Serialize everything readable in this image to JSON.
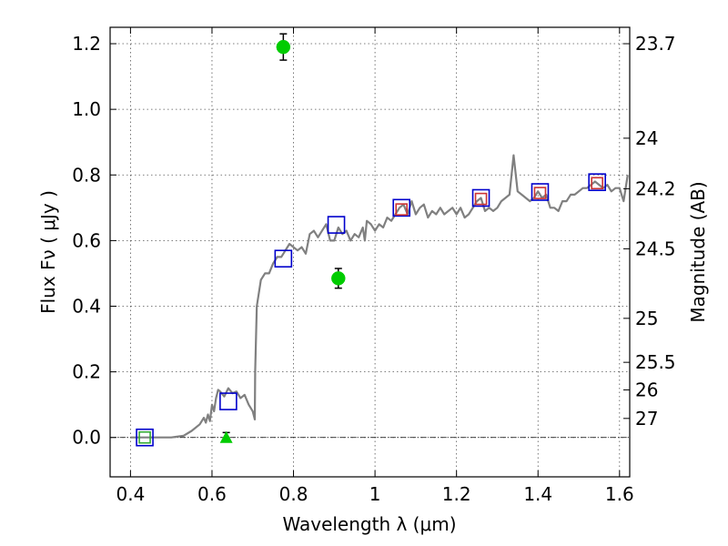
{
  "chart_data": {
    "type": "scatter",
    "xlabel": "Wavelength  λ (μm)",
    "ylabel": "Flux  Fν  ( μJy )",
    "y2label": "Magnitude (AB)",
    "xlim": [
      0.35,
      1.625
    ],
    "ylim": [
      -0.12,
      1.25
    ],
    "grid": true,
    "x_ticks": [
      {
        "v": 0.4,
        "label": "0.4"
      },
      {
        "v": 0.6,
        "label": "0.6"
      },
      {
        "v": 0.8,
        "label": "0.8"
      },
      {
        "v": 1.0,
        "label": "1"
      },
      {
        "v": 1.2,
        "label": "1.2"
      },
      {
        "v": 1.4,
        "label": "1.4"
      },
      {
        "v": 1.6,
        "label": "1.6"
      }
    ],
    "y_ticks": [
      {
        "v": 0.0,
        "label": "0.0"
      },
      {
        "v": 0.2,
        "label": "0.2"
      },
      {
        "v": 0.4,
        "label": "0.4"
      },
      {
        "v": 0.6,
        "label": "0.6"
      },
      {
        "v": 0.8,
        "label": "0.8"
      },
      {
        "v": 1.0,
        "label": "1.0"
      },
      {
        "v": 1.2,
        "label": "1.2"
      }
    ],
    "y2_ticks": [
      {
        "flux": 1.2,
        "label": "23.7"
      },
      {
        "flux": 0.912,
        "label": "24"
      },
      {
        "flux": 0.758,
        "label": "24.2"
      },
      {
        "flux": 0.575,
        "label": "24.5"
      },
      {
        "flux": 0.363,
        "label": "25"
      },
      {
        "flux": 0.229,
        "label": "25.5"
      },
      {
        "flux": 0.145,
        "label": "26"
      },
      {
        "flux": 0.058,
        "label": "27"
      }
    ],
    "series": [
      {
        "kind": "model-spectrum",
        "color": "#808080",
        "points": [
          [
            0.4,
            0.0
          ],
          [
            0.44,
            0.0
          ],
          [
            0.5,
            0.0
          ],
          [
            0.53,
            0.005
          ],
          [
            0.55,
            0.02
          ],
          [
            0.57,
            0.04
          ],
          [
            0.58,
            0.06
          ],
          [
            0.585,
            0.045
          ],
          [
            0.59,
            0.07
          ],
          [
            0.595,
            0.05
          ],
          [
            0.6,
            0.1
          ],
          [
            0.605,
            0.08
          ],
          [
            0.61,
            0.12
          ],
          [
            0.615,
            0.145
          ],
          [
            0.62,
            0.14
          ],
          [
            0.63,
            0.125
          ],
          [
            0.64,
            0.15
          ],
          [
            0.65,
            0.135
          ],
          [
            0.66,
            0.14
          ],
          [
            0.67,
            0.12
          ],
          [
            0.68,
            0.13
          ],
          [
            0.69,
            0.1
          ],
          [
            0.7,
            0.08
          ],
          [
            0.705,
            0.055
          ],
          [
            0.706,
            0.2
          ],
          [
            0.71,
            0.4
          ],
          [
            0.72,
            0.48
          ],
          [
            0.73,
            0.5
          ],
          [
            0.74,
            0.5
          ],
          [
            0.75,
            0.53
          ],
          [
            0.76,
            0.55
          ],
          [
            0.77,
            0.55
          ],
          [
            0.78,
            0.57
          ],
          [
            0.79,
            0.59
          ],
          [
            0.8,
            0.58
          ],
          [
            0.81,
            0.57
          ],
          [
            0.82,
            0.58
          ],
          [
            0.83,
            0.56
          ],
          [
            0.84,
            0.62
          ],
          [
            0.85,
            0.63
          ],
          [
            0.86,
            0.61
          ],
          [
            0.87,
            0.63
          ],
          [
            0.88,
            0.65
          ],
          [
            0.89,
            0.6
          ],
          [
            0.9,
            0.6
          ],
          [
            0.91,
            0.64
          ],
          [
            0.92,
            0.62
          ],
          [
            0.93,
            0.63
          ],
          [
            0.94,
            0.6
          ],
          [
            0.95,
            0.62
          ],
          [
            0.96,
            0.61
          ],
          [
            0.97,
            0.64
          ],
          [
            0.975,
            0.6
          ],
          [
            0.98,
            0.66
          ],
          [
            0.99,
            0.65
          ],
          [
            1.0,
            0.63
          ],
          [
            1.01,
            0.65
          ],
          [
            1.02,
            0.64
          ],
          [
            1.03,
            0.67
          ],
          [
            1.04,
            0.66
          ],
          [
            1.05,
            0.68
          ],
          [
            1.06,
            0.7
          ],
          [
            1.07,
            0.71
          ],
          [
            1.08,
            0.68
          ],
          [
            1.09,
            0.72
          ],
          [
            1.1,
            0.68
          ],
          [
            1.11,
            0.7
          ],
          [
            1.12,
            0.71
          ],
          [
            1.13,
            0.67
          ],
          [
            1.14,
            0.69
          ],
          [
            1.15,
            0.68
          ],
          [
            1.16,
            0.7
          ],
          [
            1.17,
            0.68
          ],
          [
            1.18,
            0.69
          ],
          [
            1.19,
            0.7
          ],
          [
            1.2,
            0.68
          ],
          [
            1.21,
            0.7
          ],
          [
            1.22,
            0.67
          ],
          [
            1.23,
            0.68
          ],
          [
            1.24,
            0.7
          ],
          [
            1.25,
            0.72
          ],
          [
            1.26,
            0.73
          ],
          [
            1.27,
            0.69
          ],
          [
            1.28,
            0.7
          ],
          [
            1.29,
            0.69
          ],
          [
            1.3,
            0.7
          ],
          [
            1.31,
            0.72
          ],
          [
            1.32,
            0.73
          ],
          [
            1.33,
            0.74
          ],
          [
            1.34,
            0.86
          ],
          [
            1.35,
            0.75
          ],
          [
            1.36,
            0.74
          ],
          [
            1.37,
            0.73
          ],
          [
            1.38,
            0.72
          ],
          [
            1.39,
            0.73
          ],
          [
            1.4,
            0.75
          ],
          [
            1.41,
            0.73
          ],
          [
            1.42,
            0.74
          ],
          [
            1.43,
            0.7
          ],
          [
            1.44,
            0.7
          ],
          [
            1.45,
            0.69
          ],
          [
            1.46,
            0.72
          ],
          [
            1.47,
            0.72
          ],
          [
            1.48,
            0.74
          ],
          [
            1.49,
            0.74
          ],
          [
            1.5,
            0.75
          ],
          [
            1.51,
            0.76
          ],
          [
            1.52,
            0.76
          ],
          [
            1.53,
            0.77
          ],
          [
            1.54,
            0.78
          ],
          [
            1.55,
            0.77
          ],
          [
            1.56,
            0.76
          ],
          [
            1.57,
            0.77
          ],
          [
            1.58,
            0.75
          ],
          [
            1.59,
            0.76
          ],
          [
            1.6,
            0.76
          ],
          [
            1.61,
            0.72
          ],
          [
            1.62,
            0.8
          ]
        ]
      },
      {
        "kind": "model-photometry",
        "marker": "open-square",
        "color": "#0000cc",
        "points": [
          [
            0.435,
            0.0
          ],
          [
            0.64,
            0.11
          ],
          [
            0.775,
            0.545
          ],
          [
            0.905,
            0.648
          ],
          [
            1.065,
            0.7
          ],
          [
            1.26,
            0.73
          ],
          [
            1.405,
            0.748
          ],
          [
            1.545,
            0.778
          ]
        ]
      },
      {
        "kind": "model-photometry-inner",
        "marker": "open-square",
        "color": "#cc3333",
        "points": [
          [
            1.065,
            0.695
          ],
          [
            1.26,
            0.727
          ],
          [
            1.405,
            0.745
          ],
          [
            1.545,
            0.775
          ]
        ]
      },
      {
        "kind": "inner-marker",
        "marker": "open-square",
        "color": "#33aa33",
        "points": [
          [
            0.435,
            0.0
          ]
        ]
      },
      {
        "kind": "observed-photometry",
        "marker": "filled-circle",
        "color": "#00cc00",
        "points": [
          [
            0.775,
            1.19,
            0.04
          ],
          [
            0.91,
            0.485,
            0.03
          ]
        ]
      },
      {
        "kind": "observed-photometry",
        "marker": "filled-triangle",
        "color": "#00cc00",
        "points": [
          [
            0.635,
            0.0,
            0.015
          ]
        ]
      }
    ]
  }
}
